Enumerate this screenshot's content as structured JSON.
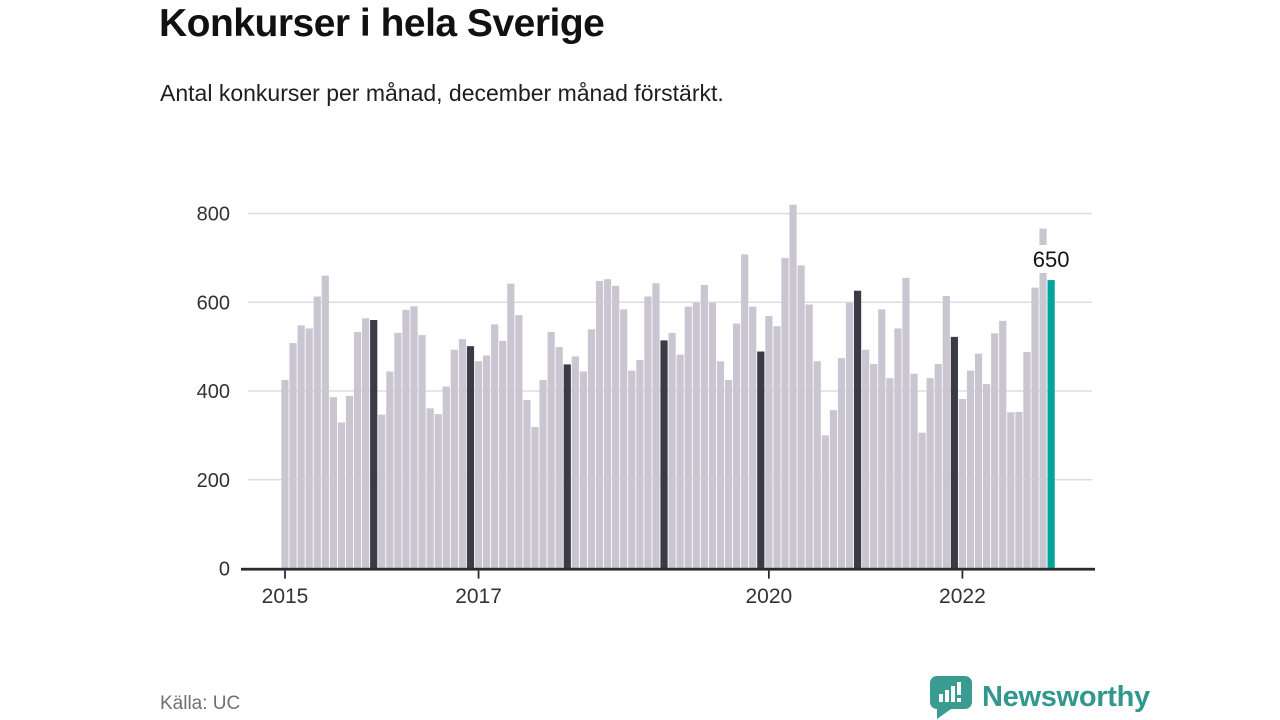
{
  "header": {
    "title": "Konkurser i hela Sverige",
    "subtitle": "Antal konkurser per månad, december månad förstärkt."
  },
  "footer": {
    "source": "Källa: UC",
    "brand": "Newsworthy"
  },
  "colors": {
    "bar_normal": "#c9c6d2",
    "bar_december": "#3b3b48",
    "bar_highlight": "#00a49a",
    "grid": "#dddde1",
    "axis": "#2b2b2b",
    "tick_text": "#333333",
    "annotation_text": "#141414",
    "brand_teal": "#3a9c91"
  },
  "chart_data": {
    "type": "bar",
    "title": "Konkurser i hela Sverige",
    "subtitle": "Antal konkurser per månad, december månad förstärkt.",
    "xlabel": "",
    "ylabel": "",
    "ylim": [
      0,
      800
    ],
    "yticks": [
      0,
      200,
      400,
      600,
      800
    ],
    "grid": "horizontal",
    "legend": "none",
    "start": "2015-01",
    "end": "2022-12",
    "styling_note": "monthly bars light gray; every December bar dark; final bar (Dec 2022) teal highlight with value label",
    "xtick_labels": [
      "2015",
      "2017",
      "2020",
      "2022"
    ],
    "xtick_month_offsets": [
      0,
      24,
      60,
      84
    ],
    "annotations": [
      {
        "text": "650",
        "target_month_offset": 95
      }
    ],
    "series": [
      {
        "name": "Antal konkurser per månad",
        "values": [
          425,
          508,
          548,
          541,
          613,
          660,
          386,
          329,
          389,
          533,
          564,
          560,
          347,
          444,
          531,
          583,
          591,
          526,
          361,
          348,
          410,
          493,
          517,
          501,
          467,
          480,
          550,
          513,
          642,
          571,
          380,
          319,
          425,
          533,
          499,
          460,
          478,
          444,
          539,
          648,
          652,
          637,
          584,
          446,
          470,
          613,
          643,
          514,
          531,
          482,
          590,
          599,
          639,
          599,
          467,
          425,
          552,
          708,
          590,
          489,
          569,
          546,
          700,
          820,
          683,
          595,
          467,
          300,
          357,
          474,
          599,
          626,
          493,
          461,
          584,
          429,
          541,
          655,
          439,
          306,
          429,
          461,
          614,
          522,
          382,
          446,
          484,
          416,
          530,
          558,
          352,
          353,
          488,
          633,
          766,
          650
        ]
      }
    ]
  }
}
